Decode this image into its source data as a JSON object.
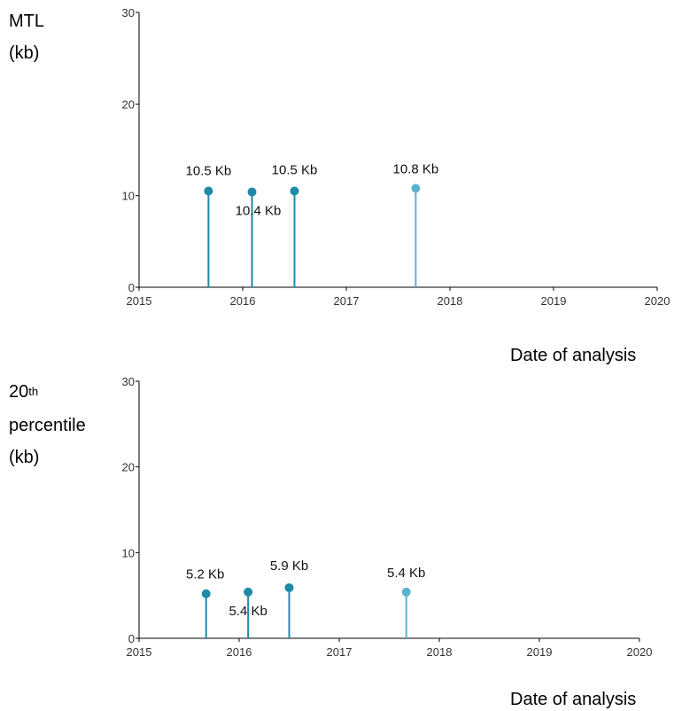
{
  "charts": [
    {
      "ylabel_lines": [
        "MTL",
        "(kb)"
      ],
      "xlabel": "Date of analysis"
    },
    {
      "ylabel_main": "20",
      "ylabel_sup": "th",
      "ylabel_lines": [
        "percentile",
        "(kb)"
      ],
      "xlabel": "Date of analysis"
    }
  ],
  "chart_data": [
    {
      "type": "scatter",
      "xlabel": "Date of analysis",
      "ylabel": "MTL (kb)",
      "xlim": [
        2015,
        2020
      ],
      "ylim": [
        0,
        30
      ],
      "x_ticks": [
        "2015",
        "2016",
        "2017",
        "2018",
        "2019",
        "2020"
      ],
      "y_ticks": [
        "0",
        "10",
        "20",
        "30"
      ],
      "points": [
        {
          "x": 2015.67,
          "y": 10.5,
          "label": "10.5 Kb"
        },
        {
          "x": 2016.09,
          "y": 10.4,
          "label": "10.4 Kb"
        },
        {
          "x": 2016.5,
          "y": 10.5,
          "label": "10.5 Kb"
        },
        {
          "x": 2017.67,
          "y": 10.8,
          "label": "10.8 Kb"
        }
      ],
      "colors": [
        "#1f8aa8",
        "#1f8aa8",
        "#1f8aa8",
        "#5bb2cf"
      ]
    },
    {
      "type": "scatter",
      "xlabel": "Date of analysis",
      "ylabel": "20th percentile (kb)",
      "xlim": [
        2015,
        2020
      ],
      "ylim": [
        0,
        30
      ],
      "x_ticks": [
        "2015",
        "2016",
        "2017",
        "2018",
        "2019",
        "2020"
      ],
      "y_ticks": [
        "0",
        "10",
        "20",
        "30"
      ],
      "points": [
        {
          "x": 2015.67,
          "y": 5.2,
          "label": "5.2 Kb"
        },
        {
          "x": 2016.09,
          "y": 5.4,
          "label": "5.4 Kb"
        },
        {
          "x": 2016.5,
          "y": 5.9,
          "label": "5.9 Kb"
        },
        {
          "x": 2017.67,
          "y": 5.4,
          "label": "5.4 Kb"
        }
      ],
      "colors": [
        "#1f8aa8",
        "#1f8aa8",
        "#1f8aa8",
        "#5bb2cf"
      ]
    }
  ]
}
